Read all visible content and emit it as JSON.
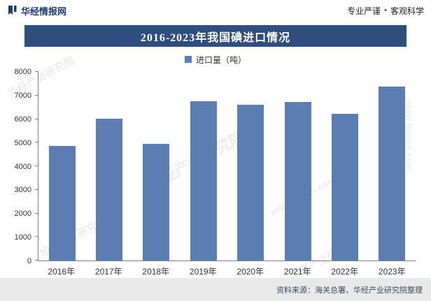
{
  "header": {
    "brand": "华经情报网",
    "slogan_left": "专业严谨",
    "slogan_separator": "•",
    "slogan_right": "客观科学"
  },
  "watermark": {
    "name": "华经产业研究院",
    "url": "www.huaon.com"
  },
  "footer": {
    "source": "资料来源：海关总署、华经产业研究院整理"
  },
  "colors": {
    "banner_bg": "#2F4E7D",
    "bar_fill": "#5B7DB1",
    "footer_bg": "#E9E9E9",
    "brand_text": "#1E3A6E"
  },
  "chart_data": {
    "type": "bar",
    "title": "2016-2023年我国碘进口情况",
    "legend": "进口量（吨）",
    "legend_position": "top-center",
    "categories": [
      "2016年",
      "2017年",
      "2018年",
      "2019年",
      "2020年",
      "2021年",
      "2022年",
      "2023年"
    ],
    "values": [
      4850,
      6020,
      4940,
      6770,
      6610,
      6740,
      6220,
      7380
    ],
    "xlabel": "",
    "ylabel": "",
    "ylim": [
      0,
      8000
    ],
    "ytick_step": 1000,
    "grid": false
  }
}
